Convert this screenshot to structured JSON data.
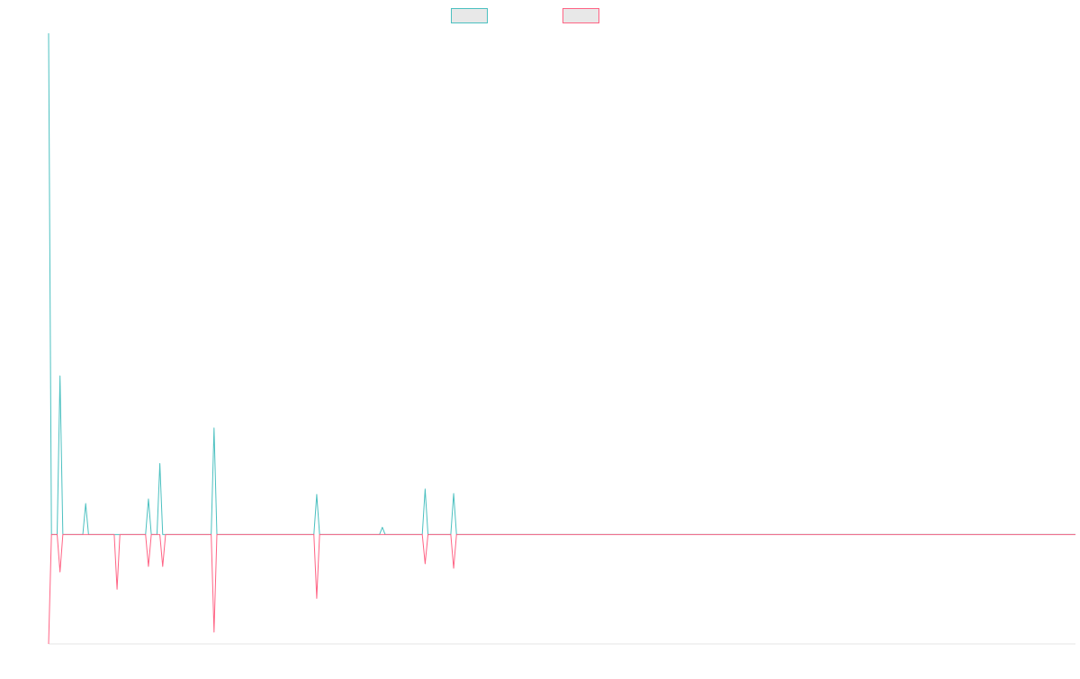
{
  "chart_data": {
    "type": "line",
    "title": "",
    "xlabel": "",
    "ylabel": "",
    "grid": false,
    "legend_position": "top-center",
    "ylim": [
      -120,
      550
    ],
    "x": [
      0,
      1,
      2,
      3,
      4,
      5,
      6,
      7,
      8,
      9,
      10,
      11,
      12,
      13,
      14,
      15,
      16,
      17,
      18,
      19,
      20,
      21,
      22,
      23,
      24,
      25,
      26,
      27,
      28,
      29,
      30,
      31,
      32,
      33,
      34,
      35,
      36,
      37,
      38,
      39,
      40,
      41,
      42,
      43,
      44,
      45,
      46,
      47,
      48,
      49,
      50,
      51,
      52,
      53,
      54,
      55,
      56,
      57,
      58,
      59,
      60,
      61,
      62,
      63,
      64,
      65,
      66,
      67,
      68,
      69,
      70,
      71,
      72,
      73,
      74,
      75,
      76,
      77,
      78,
      79,
      80,
      81,
      82,
      83,
      84,
      85,
      86,
      87,
      88,
      89,
      90,
      91,
      92,
      93,
      94,
      95,
      96,
      97,
      98,
      99,
      100,
      101,
      102,
      103,
      104,
      105,
      106,
      107,
      108,
      109,
      110,
      111,
      112,
      113,
      114,
      115,
      116,
      117,
      118,
      119,
      120,
      121,
      122,
      123,
      124,
      125,
      126,
      127,
      128,
      129,
      130,
      131,
      132,
      133,
      134,
      135,
      136,
      137,
      138,
      139,
      140,
      141,
      142,
      143,
      144,
      145,
      146,
      147,
      148,
      149,
      150,
      151,
      152,
      153,
      154,
      155,
      156,
      157,
      158,
      159,
      160,
      161,
      162,
      163,
      164,
      165,
      166,
      167,
      168,
      169,
      170,
      171,
      172,
      173,
      174,
      175,
      176,
      177,
      178,
      179,
      180,
      181,
      182,
      183,
      184,
      185,
      186,
      187,
      188,
      189,
      190,
      191,
      192,
      193,
      194,
      195,
      196,
      197,
      198,
      199,
      200,
      201,
      202,
      203,
      204,
      205,
      206,
      207,
      208,
      209,
      210,
      211,
      212,
      213,
      214,
      215,
      216,
      217,
      218,
      219,
      220,
      221,
      222,
      223,
      224,
      225,
      226,
      227,
      228,
      229,
      230,
      231,
      232,
      233,
      234,
      235,
      236,
      237,
      238,
      239,
      240,
      241,
      242,
      243,
      244,
      245,
      246,
      247,
      248,
      249,
      250,
      251,
      252,
      253,
      254,
      255,
      256,
      257,
      258,
      259,
      260,
      261,
      262,
      263,
      264,
      265,
      266,
      267,
      268,
      269,
      270,
      271,
      272,
      273,
      274,
      275,
      276,
      277,
      278,
      279,
      280,
      281,
      282,
      283,
      284,
      285,
      286,
      287,
      288,
      289,
      290,
      291,
      292,
      293,
      294,
      295,
      296,
      297,
      298,
      299,
      300,
      301,
      302,
      303,
      304,
      305,
      306,
      307,
      308,
      309,
      310,
      311,
      312,
      313,
      314,
      315,
      316,
      317,
      318,
      319,
      320,
      321,
      322,
      323,
      324,
      325,
      326,
      327,
      328,
      329,
      330,
      331,
      332,
      333,
      334,
      335,
      336,
      337,
      338,
      339,
      340,
      341,
      342,
      343,
      344,
      345,
      346,
      347,
      348,
      349,
      350,
      351,
      352,
      353,
      354,
      355,
      356,
      357,
      358,
      359,
      360
    ],
    "series": [
      {
        "name": "",
        "color": "#4bc0c0",
        "peaks": [
          [
            0,
            550
          ],
          [
            4,
            174
          ],
          [
            13,
            34
          ],
          [
            35,
            39
          ],
          [
            39,
            78
          ],
          [
            58,
            117
          ],
          [
            94,
            44
          ],
          [
            117,
            8
          ],
          [
            132,
            50
          ],
          [
            142,
            45
          ]
        ]
      },
      {
        "name": "",
        "color": "#ff6384",
        "peaks": [
          [
            0,
            -120
          ],
          [
            4,
            -41
          ],
          [
            24,
            -60
          ],
          [
            35,
            -35
          ],
          [
            40,
            -35
          ],
          [
            58,
            -107
          ],
          [
            94,
            -70
          ],
          [
            132,
            -32
          ],
          [
            142,
            -37
          ]
        ]
      }
    ]
  }
}
